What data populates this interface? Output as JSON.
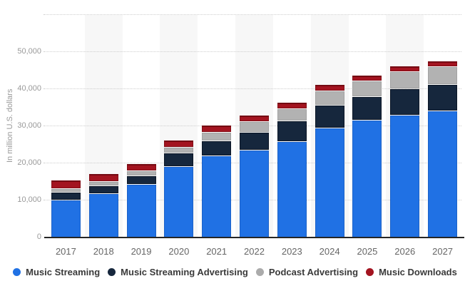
{
  "chart_data": {
    "type": "bar",
    "stacked": true,
    "title": "",
    "ylabel": "In million U.S. dollars",
    "xlabel": "",
    "categories": [
      "2017",
      "2018",
      "2019",
      "2020",
      "2021",
      "2022",
      "2023",
      "2024",
      "2025",
      "2026",
      "2027"
    ],
    "series": [
      {
        "name": "Music Streaming",
        "color": "#2071e4",
        "border_color": "#1c62c8",
        "values": [
          10000,
          11600,
          14100,
          19000,
          21900,
          23400,
          25800,
          29400,
          31400,
          32900,
          34000
        ]
      },
      {
        "name": "Music Streaming Advertising",
        "color": "#16273d",
        "border_color": "#0b1626",
        "values": [
          1900,
          2000,
          2200,
          3500,
          3900,
          4600,
          5400,
          6000,
          6300,
          6800,
          6900
        ]
      },
      {
        "name": "Podcast Advertising",
        "color": "#b2b2b2",
        "border_color": "#a2a2a2",
        "values": [
          650,
          900,
          1050,
          1250,
          2100,
          2700,
          2900,
          3650,
          4100,
          4500,
          4750
        ]
      },
      {
        "name": "Music Downloads",
        "color": "#a31420",
        "border_color": "#830d16",
        "border_top_color": "#740a12",
        "values": [
          2100,
          2050,
          1900,
          1800,
          1700,
          1650,
          1550,
          1450,
          1350,
          1300,
          1250
        ]
      }
    ],
    "ylim": [
      0,
      60000
    ],
    "ytick_step": 10000,
    "ytick_labels": [
      "0",
      "10,000",
      "20,000",
      "30,000",
      "40,000",
      "50,000"
    ],
    "grid": "horizontal-dotted",
    "gridline_color": "#cdcdcd",
    "axis_line_color": "#262626",
    "legend_position": "bottom",
    "striped_categories": [
      "2018",
      "2020",
      "2022",
      "2024",
      "2026"
    ],
    "stripe_color": "#f7f7f7"
  }
}
